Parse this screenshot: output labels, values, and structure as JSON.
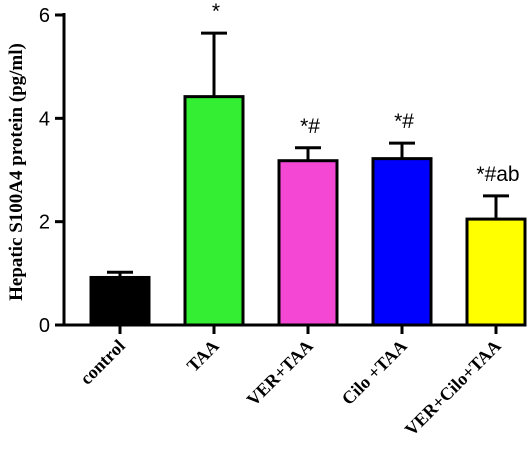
{
  "chart_data": {
    "type": "bar",
    "title": "",
    "xlabel": "",
    "ylabel": "Hepatic S100A4 protein (pg/ml)",
    "ylim": [
      0,
      6
    ],
    "yticks": [
      "0",
      "2",
      "4",
      "6"
    ],
    "grid": false,
    "categories": [
      "control",
      "TAA",
      "VER+TAA",
      "Cilo +TAA",
      "VER+Cilo+TAA"
    ],
    "values": [
      0.92,
      4.42,
      3.18,
      3.22,
      2.05
    ],
    "error": [
      0.1,
      1.23,
      0.25,
      0.3,
      0.45
    ],
    "colors": [
      "#000000",
      "#33ee33",
      "#f447d4",
      "#0000ff",
      "#ffff00"
    ],
    "annotations": [
      "",
      "*",
      "*#",
      "*#",
      "*#ab"
    ]
  }
}
